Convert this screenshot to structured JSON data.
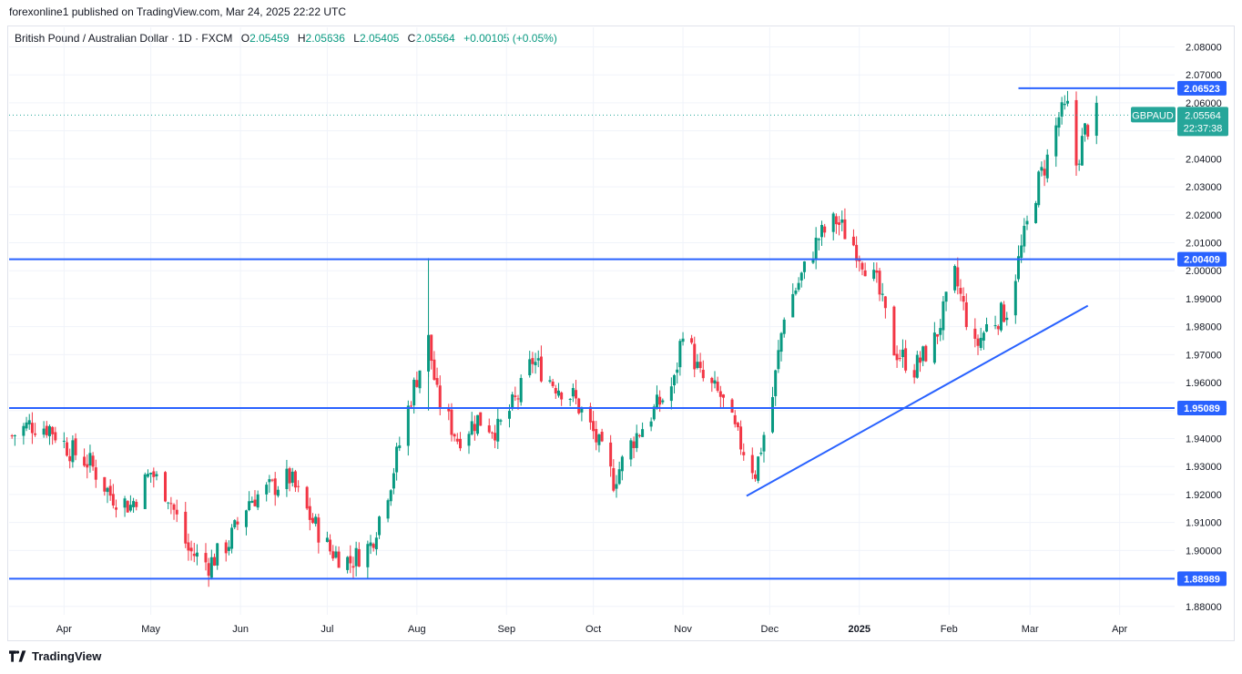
{
  "header": {
    "publisher": "forexonline1 published on TradingView.com, Mar 24, 2025 22:22 UTC"
  },
  "legend": {
    "symbol": "British Pound / Australian Dollar · 1D · FXCM",
    "o_label": "O",
    "o_value": "2.05459",
    "h_label": "H",
    "h_value": "2.05636",
    "l_label": "L",
    "l_value": "2.05405",
    "c_label": "C",
    "c_value": "2.05564",
    "change": "+0.00105 (+0.05%)"
  },
  "footer": {
    "brand": "TradingView"
  },
  "colors": {
    "up": "#089981",
    "down": "#f23645",
    "line": "#2962ff",
    "last": "#26a69a"
  },
  "chart_data": {
    "type": "candlestick",
    "symbol": "GBPAUD",
    "ylim": [
      1.877,
      2.087
    ],
    "yticks": [
      "2.08000",
      "2.07000",
      "2.06000",
      "2.05000",
      "2.04000",
      "2.03000",
      "2.02000",
      "2.01000",
      "2.00000",
      "1.99000",
      "1.98000",
      "1.97000",
      "1.96000",
      "1.95000",
      "1.94000",
      "1.93000",
      "1.92000",
      "1.91000",
      "1.90000",
      "1.89000",
      "1.88000"
    ],
    "xticks": [
      {
        "label": "Apr",
        "date": "2024-04-01"
      },
      {
        "label": "May",
        "date": "2024-05-01"
      },
      {
        "label": "Jun",
        "date": "2024-06-01"
      },
      {
        "label": "Jul",
        "date": "2024-07-01"
      },
      {
        "label": "Aug",
        "date": "2024-08-01"
      },
      {
        "label": "Sep",
        "date": "2024-09-01"
      },
      {
        "label": "Oct",
        "date": "2024-10-01"
      },
      {
        "label": "Nov",
        "date": "2024-11-01"
      },
      {
        "label": "Dec",
        "date": "2024-12-01"
      },
      {
        "label": "2025",
        "date": "2025-01-01"
      },
      {
        "label": "Feb",
        "date": "2025-02-01"
      },
      {
        "label": "Mar",
        "date": "2025-03-01"
      },
      {
        "label": "Apr",
        "date": "2025-04-01"
      }
    ],
    "x_start": "2024-03-13",
    "x_end": "2025-04-20",
    "closes": [
      [
        "2024-03-14",
        1.941
      ],
      [
        "2024-03-20",
        1.945
      ],
      [
        "2024-03-27",
        1.944
      ],
      [
        "2024-04-03",
        1.936
      ],
      [
        "2024-04-10",
        1.931
      ],
      [
        "2024-04-17",
        1.92
      ],
      [
        "2024-04-24",
        1.916
      ],
      [
        "2024-05-01",
        1.928
      ],
      [
        "2024-05-07",
        1.92
      ],
      [
        "2024-05-14",
        1.9
      ],
      [
        "2024-05-21",
        1.895
      ],
      [
        "2024-05-28",
        1.903
      ],
      [
        "2024-06-04",
        1.918
      ],
      [
        "2024-06-11",
        1.922
      ],
      [
        "2024-06-18",
        1.926
      ],
      [
        "2024-06-25",
        1.912
      ],
      [
        "2024-07-02",
        1.9
      ],
      [
        "2024-07-09",
        1.896
      ],
      [
        "2024-07-16",
        1.902
      ],
      [
        "2024-07-23",
        1.925
      ],
      [
        "2024-07-30",
        1.955
      ],
      [
        "2024-08-01",
        1.962
      ],
      [
        "2024-08-05",
        1.975
      ],
      [
        "2024-08-08",
        1.955
      ],
      [
        "2024-08-15",
        1.94
      ],
      [
        "2024-08-22",
        1.947
      ],
      [
        "2024-08-29",
        1.943
      ],
      [
        "2024-09-05",
        1.955
      ],
      [
        "2024-09-10",
        1.968
      ],
      [
        "2024-09-17",
        1.96
      ],
      [
        "2024-09-24",
        1.955
      ],
      [
        "2024-10-01",
        1.942
      ],
      [
        "2024-10-08",
        1.925
      ],
      [
        "2024-10-15",
        1.94
      ],
      [
        "2024-10-22",
        1.95
      ],
      [
        "2024-10-29",
        1.96
      ],
      [
        "2024-11-01",
        1.98
      ],
      [
        "2024-11-07",
        1.962
      ],
      [
        "2024-11-14",
        1.955
      ],
      [
        "2024-11-20",
        1.94
      ],
      [
        "2024-11-26",
        1.928
      ],
      [
        "2024-12-02",
        1.955
      ],
      [
        "2024-12-06",
        1.985
      ],
      [
        "2024-12-12",
        1.998
      ],
      [
        "2024-12-18",
        2.012
      ],
      [
        "2024-12-24",
        2.018
      ],
      [
        "2024-12-31",
        2.008
      ],
      [
        "2025-01-07",
        1.995
      ],
      [
        "2025-01-13",
        1.972
      ],
      [
        "2025-01-20",
        1.965
      ],
      [
        "2025-01-27",
        1.975
      ],
      [
        "2025-02-03",
        1.998
      ],
      [
        "2025-02-10",
        1.972
      ],
      [
        "2025-02-14",
        1.98
      ],
      [
        "2025-02-21",
        1.986
      ],
      [
        "2025-02-27",
        2.012
      ],
      [
        "2025-03-04",
        2.032
      ],
      [
        "2025-03-07",
        2.04
      ],
      [
        "2025-03-11",
        2.055
      ],
      [
        "2025-03-14",
        2.058
      ],
      [
        "2025-03-17",
        2.038
      ],
      [
        "2025-03-20",
        2.05
      ],
      [
        "2025-03-24",
        2.05564
      ]
    ],
    "horizontal_levels": [
      2.06523,
      2.00409,
      1.95089,
      1.88989
    ],
    "top_level_start": "2025-02-25",
    "trendline": {
      "from": {
        "date": "2024-11-23",
        "price": 1.9195
      },
      "to": {
        "date": "2025-03-21",
        "price": 1.9875
      }
    },
    "last_price": {
      "symbol": "GBPAUD",
      "value": "2.05564",
      "countdown": "22:37:38"
    },
    "level_labels": [
      "2.06523",
      "2.00409",
      "1.95089",
      "1.88989"
    ]
  }
}
